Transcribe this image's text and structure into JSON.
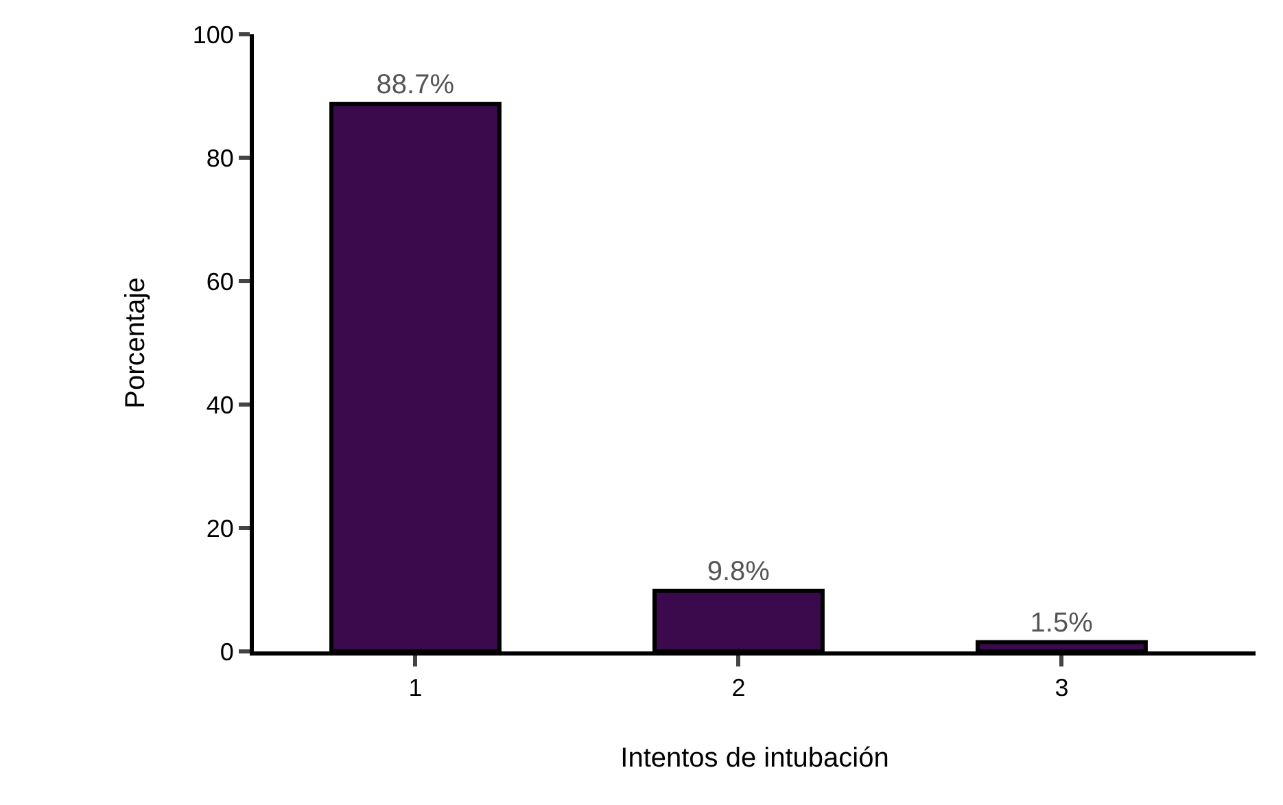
{
  "chart_data": {
    "type": "bar",
    "xlabel": "Intentos de intubación",
    "ylabel": "Porcentaje",
    "categories": [
      "1",
      "2",
      "3"
    ],
    "series": [
      {
        "color": "#3b0a4c",
        "values": [
          88.7,
          9.8,
          1.5
        ],
        "value_labels": [
          "88.7%",
          "9.8%",
          "1.5%"
        ]
      }
    ],
    "ylim": [
      0,
      100
    ],
    "yticks": [
      0,
      20,
      40,
      60,
      80,
      100
    ]
  }
}
